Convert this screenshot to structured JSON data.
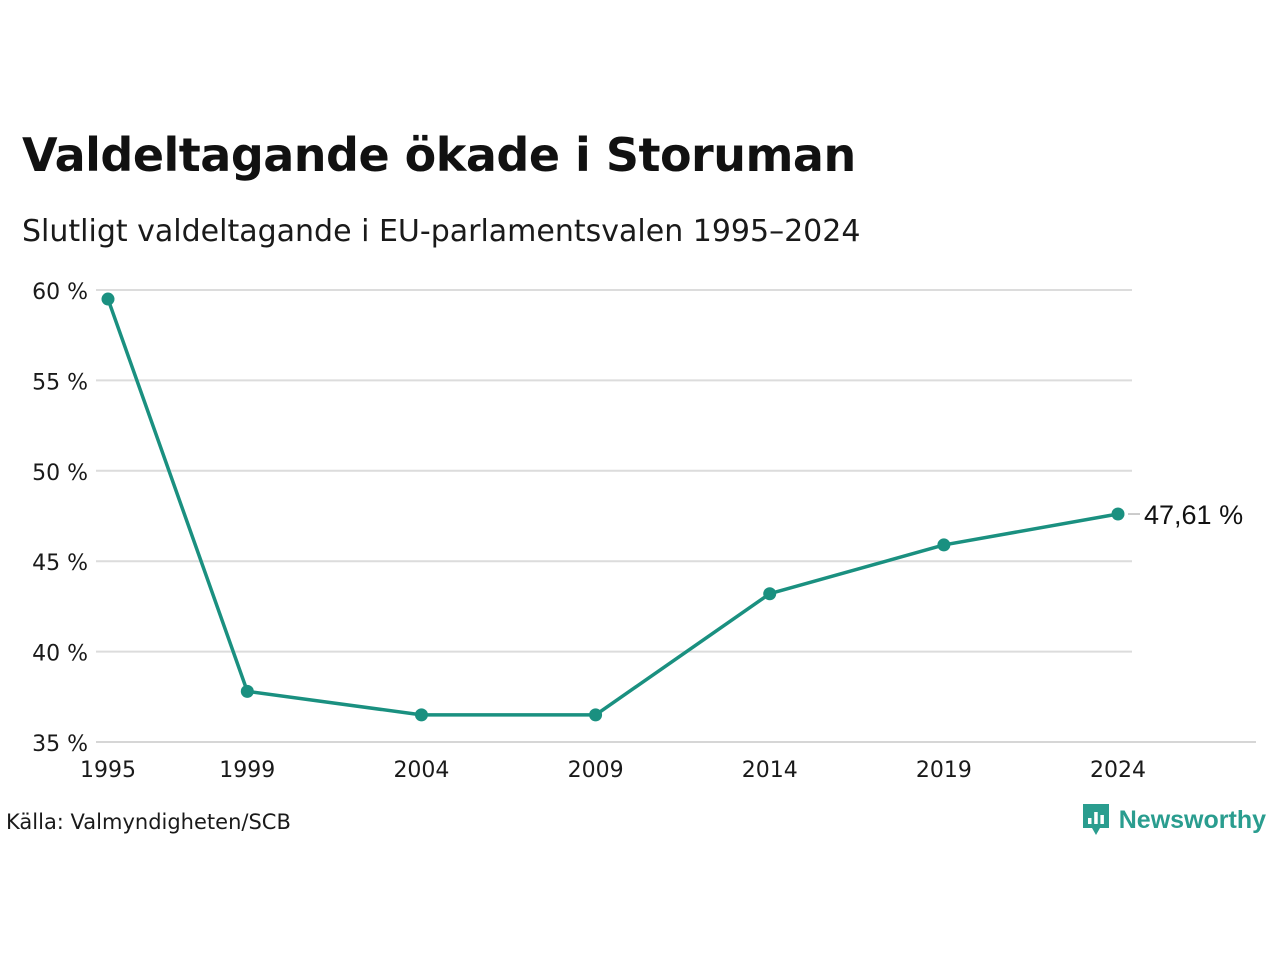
{
  "title": "Valdeltagande ökade i Storuman",
  "subtitle": "Slutligt valdeltagande i EU-parlamentsvalen 1995–2024",
  "source": "Källa: Valmyndigheten/SCB",
  "brand": {
    "name": "Newsworthy",
    "icon": "newsworthy-logo-icon"
  },
  "colors": {
    "line": "#1a9080",
    "grid": "#dcdcdc",
    "brand": "#2a9d8f"
  },
  "chart_data": {
    "type": "line",
    "x": [
      1995,
      1999,
      2004,
      2009,
      2014,
      2019,
      2024
    ],
    "series": [
      {
        "values": [
          59.5,
          37.8,
          36.5,
          36.5,
          43.2,
          45.9,
          47.61
        ]
      }
    ],
    "ylim": [
      35,
      60
    ],
    "yticks": [
      35,
      40,
      45,
      50,
      55,
      60
    ],
    "ytick_labels": [
      "35 %",
      "40 %",
      "45 %",
      "50 %",
      "55 %",
      "60 %"
    ],
    "xtick_labels": [
      "1995",
      "1999",
      "2004",
      "2009",
      "2014",
      "2019",
      "2024"
    ],
    "end_label": "47,61 %",
    "grid": "horizontal",
    "xlabel": "",
    "ylabel": ""
  }
}
